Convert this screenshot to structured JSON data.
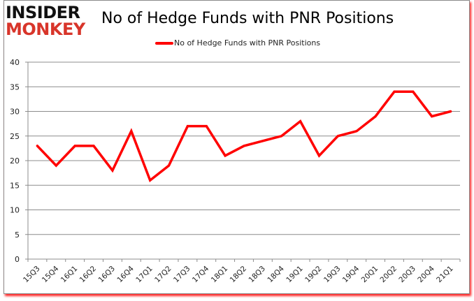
{
  "logo": {
    "line1": "INSIDER",
    "line2": "MONKEY"
  },
  "chart_data": {
    "type": "line",
    "title": "No of Hedge Funds with PNR Positions",
    "xlabel": "",
    "ylabel": "",
    "ylim": [
      0,
      40
    ],
    "yticks": [
      0,
      5,
      10,
      15,
      20,
      25,
      30,
      35,
      40
    ],
    "grid": true,
    "legend_position": "top",
    "categories": [
      "15Q3",
      "15Q4",
      "16Q1",
      "16Q2",
      "16Q3",
      "16Q4",
      "17Q1",
      "17Q2",
      "17Q3",
      "17Q4",
      "18Q1",
      "18Q2",
      "18Q3",
      "18Q4",
      "19Q1",
      "19Q2",
      "19Q3",
      "19Q4",
      "20Q1",
      "20Q2",
      "20Q3",
      "20Q4",
      "21Q1"
    ],
    "series": [
      {
        "name": "No of Hedge Funds with PNR Positions",
        "color": "#ff0000",
        "values": [
          23,
          19,
          23,
          23,
          18,
          26,
          16,
          19,
          27,
          27,
          21,
          23,
          24,
          25,
          28,
          21,
          25,
          26,
          29,
          34,
          34,
          29,
          30
        ]
      }
    ]
  }
}
